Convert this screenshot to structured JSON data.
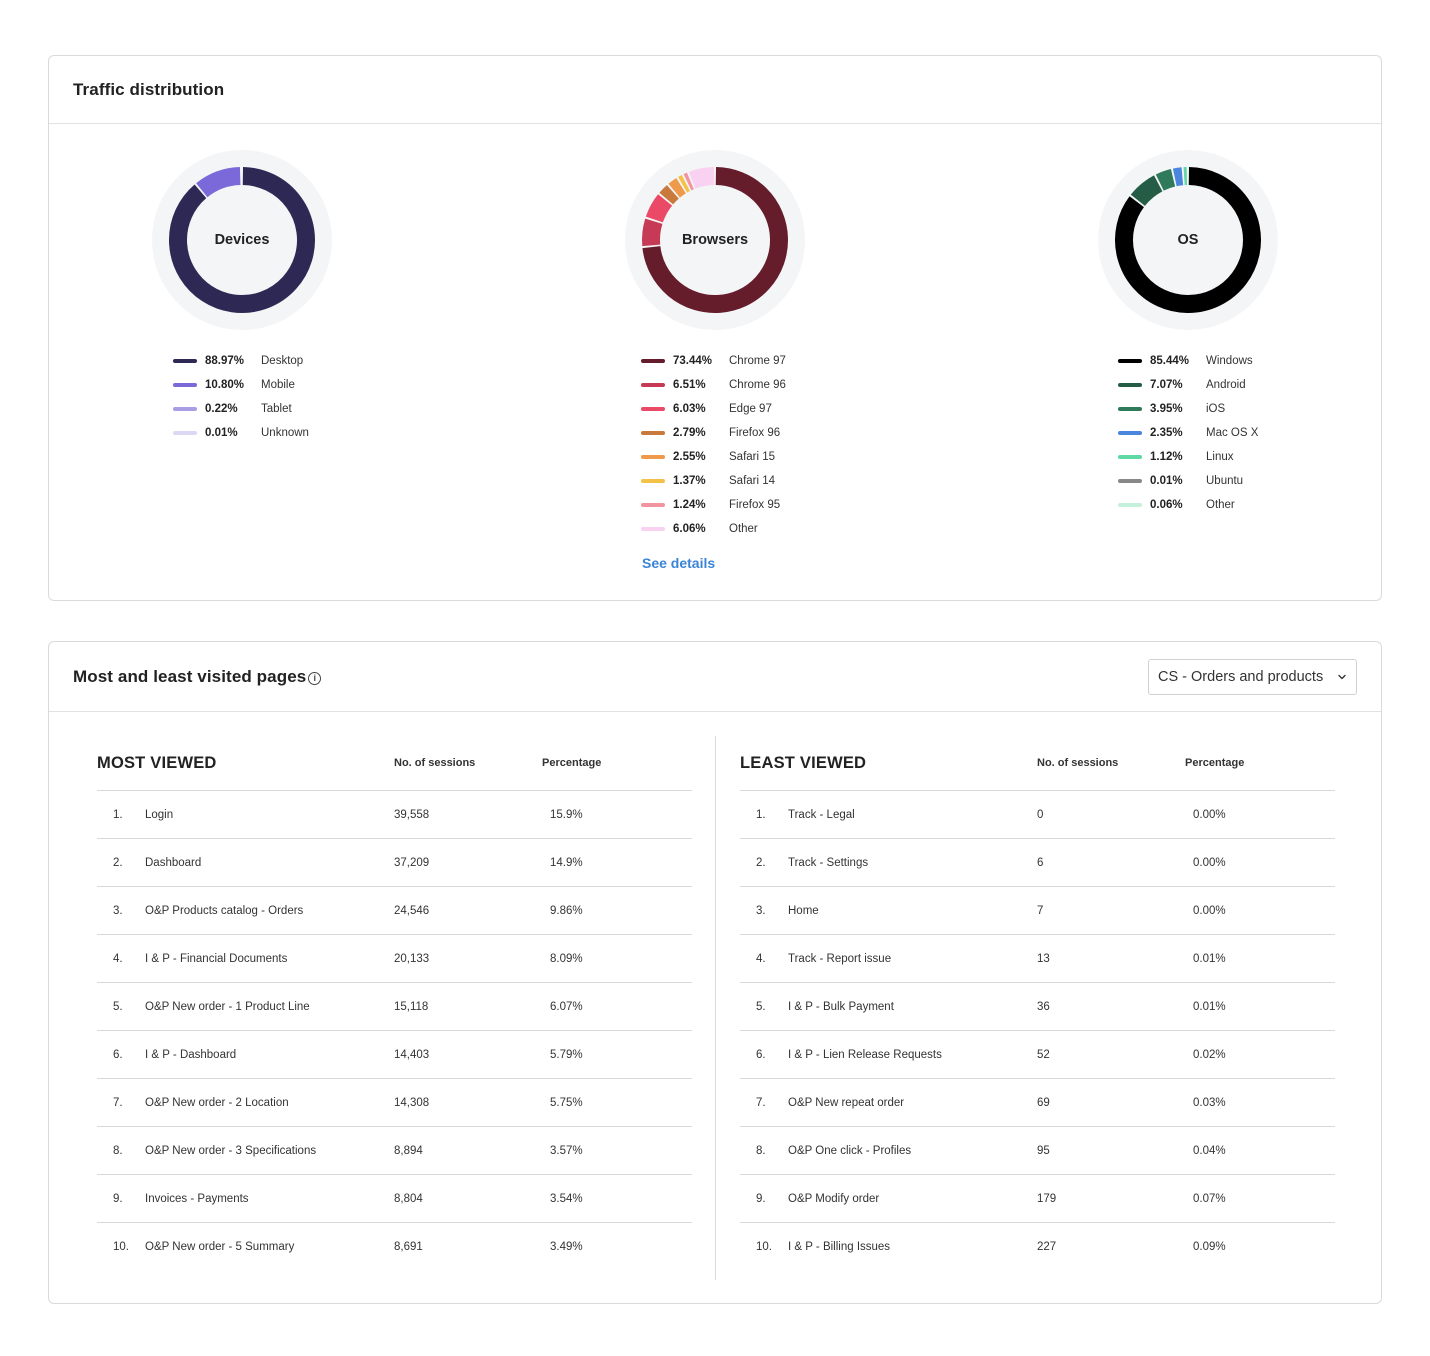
{
  "traffic": {
    "title": "Traffic distribution",
    "see_details": "See details",
    "charts": [
      {
        "label": "Devices",
        "items": [
          {
            "pct": "88.97%",
            "name": "Desktop",
            "value": 88.97,
            "color": "#2e2854"
          },
          {
            "pct": "10.80%",
            "name": "Mobile",
            "value": 10.8,
            "color": "#7b68d9"
          },
          {
            "pct": "0.22%",
            "name": "Tablet",
            "value": 0.22,
            "color": "#a99ee6"
          },
          {
            "pct": "0.01%",
            "name": "Unknown",
            "value": 0.01,
            "color": "#dcd8f4"
          }
        ]
      },
      {
        "label": "Browsers",
        "items": [
          {
            "pct": "73.44%",
            "name": "Chrome 97",
            "value": 73.44,
            "color": "#661d2b"
          },
          {
            "pct": "6.51%",
            "name": "Chrome 96",
            "value": 6.51,
            "color": "#c73a55"
          },
          {
            "pct": "6.03%",
            "name": "Edge 97",
            "value": 6.03,
            "color": "#ea4a66"
          },
          {
            "pct": "2.79%",
            "name": "Firefox 96",
            "value": 2.79,
            "color": "#c8793c"
          },
          {
            "pct": "2.55%",
            "name": "Safari 15",
            "value": 2.55,
            "color": "#ef9a4a"
          },
          {
            "pct": "1.37%",
            "name": "Safari 14",
            "value": 1.37,
            "color": "#f4c246"
          },
          {
            "pct": "1.24%",
            "name": "Firefox 95",
            "value": 1.24,
            "color": "#f1949f"
          },
          {
            "pct": "6.06%",
            "name": "Other",
            "value": 6.06,
            "color": "#f9d2f1"
          }
        ]
      },
      {
        "label": "OS",
        "items": [
          {
            "pct": "85.44%",
            "name": "Windows",
            "value": 85.44,
            "color": "#000000"
          },
          {
            "pct": "7.07%",
            "name": "Android",
            "value": 7.07,
            "color": "#245c45"
          },
          {
            "pct": "3.95%",
            "name": "iOS",
            "value": 3.95,
            "color": "#2e7a5b"
          },
          {
            "pct": "2.35%",
            "name": "Mac OS X",
            "value": 2.35,
            "color": "#4a86dd"
          },
          {
            "pct": "1.12%",
            "name": "Linux",
            "value": 1.12,
            "color": "#5fd9a4"
          },
          {
            "pct": "0.01%",
            "name": "Ubuntu",
            "value": 0.01,
            "color": "#888888"
          },
          {
            "pct": "0.06%",
            "name": "Other",
            "value": 0.06,
            "color": "#c5f0dc"
          }
        ]
      }
    ]
  },
  "pages": {
    "title": "Most and least visited pages",
    "info_icon": "info-icon",
    "dropdown_value": "CS - Orders and products",
    "most": {
      "title": "MOST VIEWED",
      "col_sessions": "No. of sessions",
      "col_percentage": "Percentage",
      "rows": [
        {
          "n": "1.",
          "page": "Login",
          "sessions": "39,558",
          "pct": "15.9%"
        },
        {
          "n": "2.",
          "page": "Dashboard",
          "sessions": "37,209",
          "pct": "14.9%"
        },
        {
          "n": "3.",
          "page": "O&P Products catalog - Orders",
          "sessions": "24,546",
          "pct": "9.86%"
        },
        {
          "n": "4.",
          "page": "I & P - Financial Documents",
          "sessions": "20,133",
          "pct": "8.09%"
        },
        {
          "n": "5.",
          "page": "O&P New order - 1 Product Line",
          "sessions": "15,118",
          "pct": "6.07%"
        },
        {
          "n": "6.",
          "page": "I & P - Dashboard",
          "sessions": "14,403",
          "pct": "5.79%"
        },
        {
          "n": "7.",
          "page": "O&P New order - 2 Location",
          "sessions": "14,308",
          "pct": "5.75%"
        },
        {
          "n": "8.",
          "page": "O&P New order - 3 Specifications",
          "sessions": "8,894",
          "pct": "3.57%"
        },
        {
          "n": "9.",
          "page": "Invoices - Payments",
          "sessions": "8,804",
          "pct": "3.54%"
        },
        {
          "n": "10.",
          "page": "O&P New order - 5 Summary",
          "sessions": "8,691",
          "pct": "3.49%"
        }
      ]
    },
    "least": {
      "title": "LEAST VIEWED",
      "col_sessions": "No. of sessions",
      "col_percentage": "Percentage",
      "rows": [
        {
          "n": "1.",
          "page": "Track - Legal",
          "sessions": "0",
          "pct": "0.00%"
        },
        {
          "n": "2.",
          "page": "Track - Settings",
          "sessions": "6",
          "pct": "0.00%"
        },
        {
          "n": "3.",
          "page": "Home",
          "sessions": "7",
          "pct": "0.00%"
        },
        {
          "n": "4.",
          "page": "Track - Report issue",
          "sessions": "13",
          "pct": "0.01%"
        },
        {
          "n": "5.",
          "page": "I & P - Bulk Payment",
          "sessions": "36",
          "pct": "0.01%"
        },
        {
          "n": "6.",
          "page": "I & P - Lien Release Requests",
          "sessions": "52",
          "pct": "0.02%"
        },
        {
          "n": "7.",
          "page": "O&P New repeat order",
          "sessions": "69",
          "pct": "0.03%"
        },
        {
          "n": "8.",
          "page": "O&P One click - Profiles",
          "sessions": "95",
          "pct": "0.04%"
        },
        {
          "n": "9.",
          "page": "O&P Modify order",
          "sessions": "179",
          "pct": "0.07%"
        },
        {
          "n": "10.",
          "page": "I & P - Billing Issues",
          "sessions": "227",
          "pct": "0.09%"
        }
      ]
    }
  }
}
